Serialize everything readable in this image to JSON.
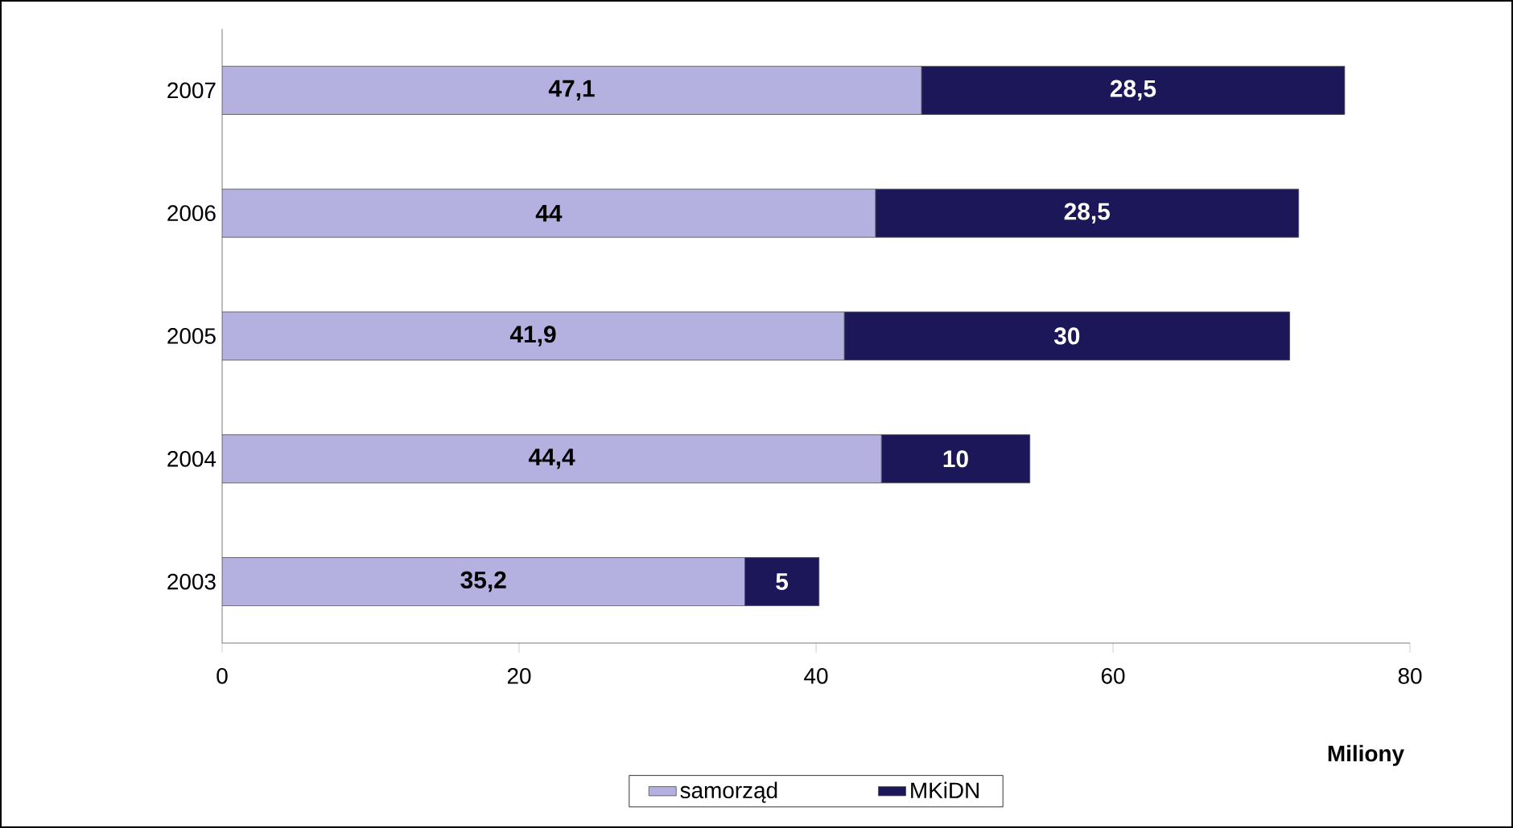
{
  "chart_data": {
    "type": "bar",
    "orientation": "horizontal",
    "stacked": true,
    "categories": [
      "2007",
      "2006",
      "2005",
      "2004",
      "2003"
    ],
    "series": [
      {
        "name": "samorząd",
        "color": "#b4b0e0",
        "values": [
          47.1,
          44,
          41.9,
          44.4,
          35.2
        ],
        "value_labels": [
          "47,1",
          "44",
          "41,9",
          "44,4",
          "35,2"
        ]
      },
      {
        "name": "MKiDN",
        "color": "#1c1758",
        "values": [
          28.5,
          28.5,
          30,
          10,
          5
        ],
        "value_labels": [
          "28,5",
          "28,5",
          "30",
          "10",
          "5"
        ]
      }
    ],
    "xlim": [
      0,
      80
    ],
    "xticks": [
      0,
      20,
      40,
      60,
      80
    ],
    "xlabel": "Miliony",
    "legend": "bottom"
  }
}
